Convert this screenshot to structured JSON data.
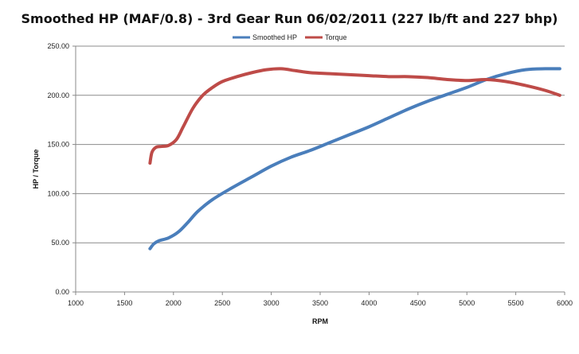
{
  "chart_data": {
    "type": "line",
    "title": "Smoothed HP (MAF/0.8) - 3rd Gear Run 06/02/2011 (227 lb/ft and 227 bhp)",
    "xlabel": "RPM",
    "ylabel": "HP / Torque",
    "xlim": [
      1000,
      6000
    ],
    "ylim": [
      0,
      250
    ],
    "x_ticks": [
      "1000",
      "1500",
      "2000",
      "2500",
      "3000",
      "3500",
      "4000",
      "4500",
      "5000",
      "5500",
      "6000"
    ],
    "y_ticks": [
      "0.00",
      "50.00",
      "100.00",
      "150.00",
      "200.00",
      "250.00"
    ],
    "grid": "horizontal",
    "legend_position": "top",
    "series": [
      {
        "name": "Smoothed HP",
        "color": "#4a7ebb",
        "x": [
          1760,
          1800,
          1850,
          1950,
          2050,
          2150,
          2250,
          2400,
          2600,
          2800,
          3000,
          3200,
          3400,
          3600,
          3800,
          4000,
          4200,
          4400,
          4600,
          4800,
          5000,
          5200,
          5400,
          5600,
          5800,
          5950
        ],
        "y": [
          44,
          49,
          52,
          55,
          61,
          71,
          82,
          94,
          106,
          117,
          128,
          137,
          144,
          152,
          160,
          168,
          177,
          186,
          194,
          201,
          208,
          216,
          222,
          226,
          227,
          227
        ]
      },
      {
        "name": "Torque",
        "color": "#be4b48",
        "x": [
          1760,
          1780,
          1820,
          1880,
          1950,
          2030,
          2100,
          2200,
          2300,
          2400,
          2500,
          2650,
          2800,
          2950,
          3100,
          3250,
          3400,
          3600,
          3800,
          4000,
          4200,
          4400,
          4600,
          4800,
          5000,
          5200,
          5400,
          5600,
          5800,
          5950
        ],
        "y": [
          131,
          142,
          147,
          148,
          149,
          155,
          168,
          187,
          200,
          208,
          214,
          219,
          223,
          226,
          227,
          225,
          223,
          222,
          221,
          220,
          219,
          219,
          218,
          216,
          215,
          216,
          214,
          210,
          205,
          200
        ]
      }
    ]
  }
}
